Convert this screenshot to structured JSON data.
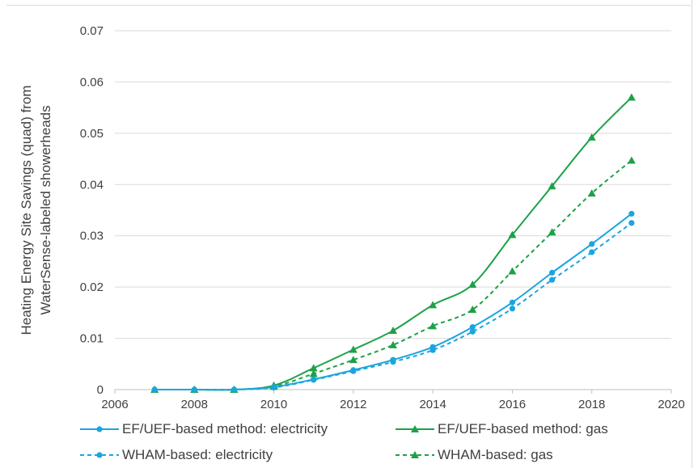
{
  "chart_data": {
    "type": "line",
    "title": "",
    "xlabel": "",
    "ylabel": "Heating Energy Site Savings (quad) from WaterSense-labeled showerheads",
    "ylabel_lines": [
      "Heating Energy Site Savings (quad) from",
      "WaterSense-labeled showerheads"
    ],
    "xlim": [
      2006,
      2020
    ],
    "ylim": [
      0,
      0.07
    ],
    "x_ticks": [
      "2006",
      "2008",
      "2010",
      "2012",
      "2014",
      "2016",
      "2018",
      "2020"
    ],
    "y_ticks": [
      "0",
      "0.01",
      "0.02",
      "0.03",
      "0.04",
      "0.05",
      "0.06",
      "0.07"
    ],
    "grid": "horizontal",
    "legend_position": "bottom",
    "x": [
      2007,
      2008,
      2009,
      2010,
      2011,
      2012,
      2013,
      2014,
      2015,
      2016,
      2017,
      2018,
      2019
    ],
    "series": [
      {
        "name": "EF/UEF-based method: electricity",
        "color": "#1aa5e0",
        "dash": "solid",
        "marker": "circle",
        "values": [
          0,
          0,
          0,
          0.0005,
          0.002,
          0.0038,
          0.0058,
          0.0083,
          0.0122,
          0.017,
          0.0228,
          0.0284,
          0.0343
        ]
      },
      {
        "name": "EF/UEF-based method: gas",
        "color": "#1da148",
        "dash": "solid",
        "marker": "triangle",
        "values": [
          0,
          0,
          0,
          0.0008,
          0.0042,
          0.0078,
          0.0115,
          0.0165,
          0.0205,
          0.0302,
          0.0397,
          0.0492,
          0.057
        ]
      },
      {
        "name": "WHAM-based: electricity",
        "color": "#1aa5e0",
        "dash": "dashed",
        "marker": "circle",
        "values": [
          0,
          0,
          0,
          0.0004,
          0.0019,
          0.0036,
          0.0054,
          0.0077,
          0.0113,
          0.0158,
          0.0214,
          0.0268,
          0.0325
        ]
      },
      {
        "name": "WHAM-based: gas",
        "color": "#1da148",
        "dash": "dashed",
        "marker": "triangle",
        "values": [
          0,
          0,
          0,
          0.0006,
          0.0031,
          0.0058,
          0.0087,
          0.0124,
          0.0156,
          0.0231,
          0.0307,
          0.0383,
          0.0447
        ]
      }
    ]
  }
}
